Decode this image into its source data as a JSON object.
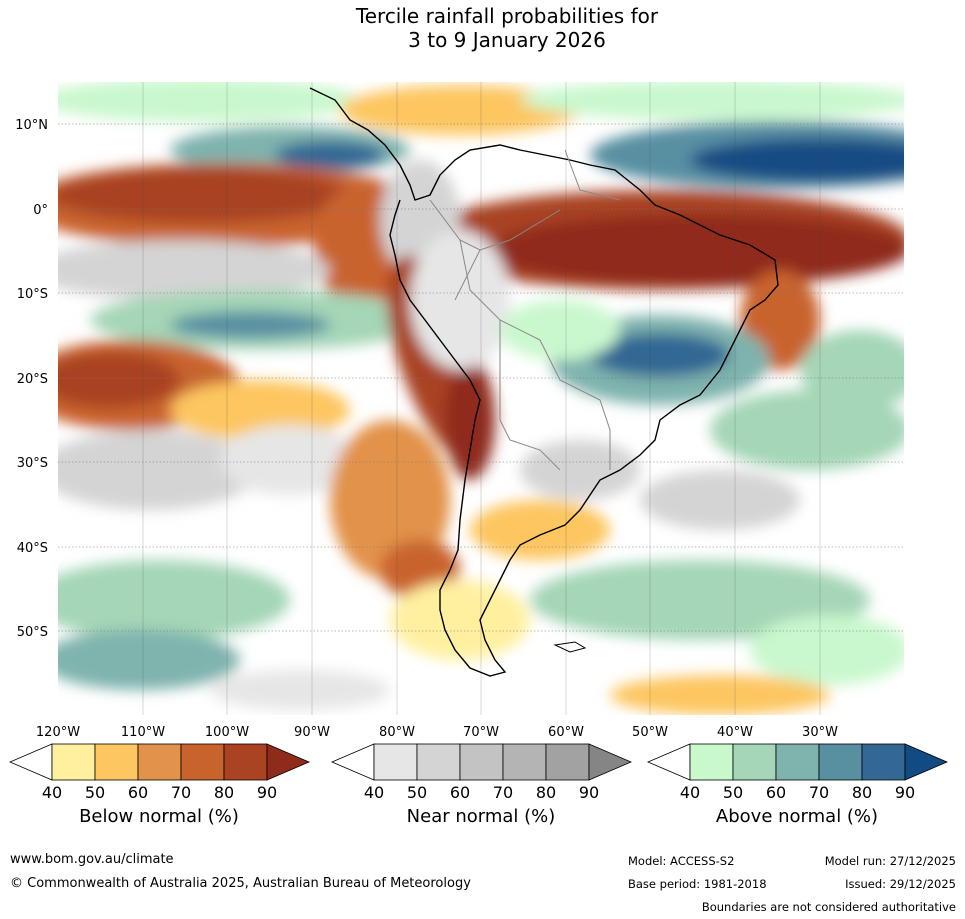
{
  "title": {
    "line1": "Tercile rainfall probabilities for",
    "line2": "3 to 9 January 2026"
  },
  "map": {
    "lat_labels": [
      "10°N",
      "0°",
      "10°S",
      "20°S",
      "30°S",
      "40°S",
      "50°S"
    ],
    "lon_labels": [
      "120°W",
      "110°W",
      "100°W",
      "90°W",
      "80°W",
      "70°W",
      "60°W",
      "50°W",
      "40°W",
      "30°W"
    ]
  },
  "colorbars": [
    {
      "label": "Below normal (%)",
      "ticks": [
        "40",
        "50",
        "60",
        "70",
        "80",
        "90"
      ],
      "colors": [
        "#fff0a0",
        "#fdc660",
        "#e2924a",
        "#c9632e",
        "#a94322",
        "#8f2b1a"
      ]
    },
    {
      "label": "Near normal (%)",
      "ticks": [
        "40",
        "50",
        "60",
        "70",
        "80",
        "90"
      ],
      "colors": [
        "#e6e6e6",
        "#d4d4d4",
        "#c3c3c3",
        "#b4b4b4",
        "#a2a2a2",
        "#858585"
      ]
    },
    {
      "label": "Above normal (%)",
      "ticks": [
        "40",
        "50",
        "60",
        "70",
        "80",
        "90"
      ],
      "colors": [
        "#c9f8cd",
        "#a4d6b7",
        "#7fb3ad",
        "#5890a2",
        "#336794",
        "#124b84"
      ]
    }
  ],
  "footer": {
    "url": "www.bom.gov.au/climate",
    "copyright": "© Commonwealth of Australia 2025, Australian Bureau of Meteorology",
    "model": "Model: ACCESS-S2",
    "model_run": "Model run: 27/12/2025",
    "base_period": "Base period: 1981-2018",
    "issued": "Issued: 29/12/2025",
    "disclaimer": "Boundaries are not considered authoritative"
  }
}
